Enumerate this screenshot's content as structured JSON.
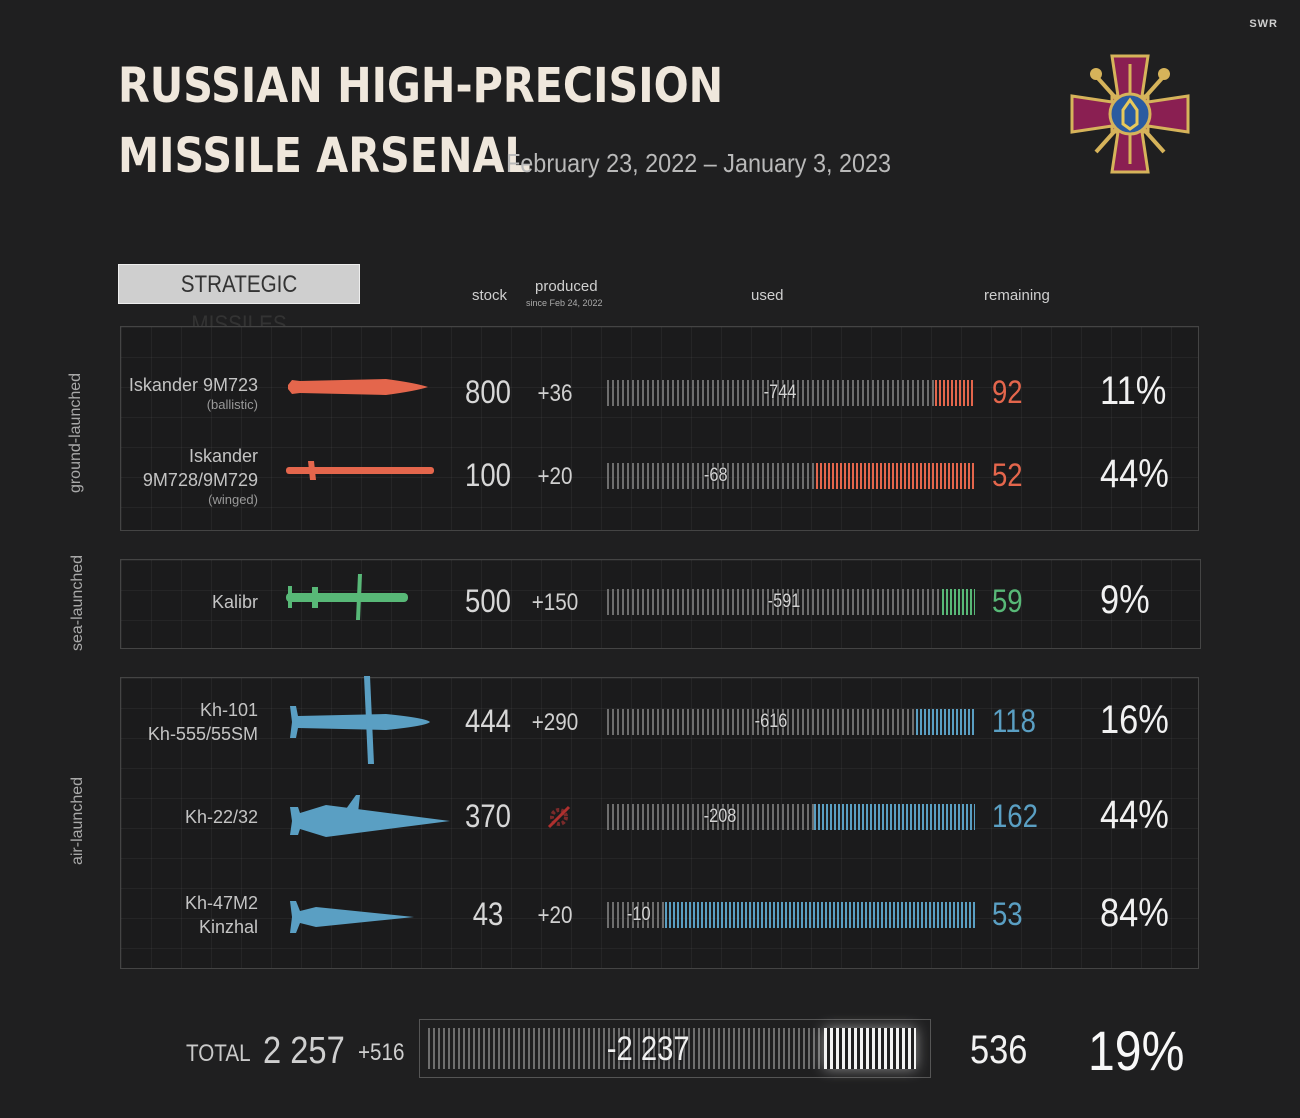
{
  "header": {
    "brand": "SWR",
    "title_line1": "RUSSIAN HIGH-PRECISION",
    "title_line2": "MISSILE ARSENAL",
    "date_range": "February 23, 2022 – January 3, 2023",
    "emblem_icon": "ukraine-armed-forces-emblem-icon"
  },
  "section": {
    "label": "STRATEGIC MISSILES"
  },
  "columns": {
    "stock": "stock",
    "produced": "produced",
    "produced_sub": "since Feb 24, 2022",
    "used": "used",
    "remaining": "remaining"
  },
  "colors": {
    "ground": "#e4664c",
    "sea": "#58b877",
    "air": "#5a9fc3"
  },
  "chart_data": {
    "type": "bar",
    "categories": [
      "Iskander 9M723",
      "Iskander 9M728/9M729",
      "Kalibr",
      "Kh-101 Kh-555/55SM",
      "Kh-22/32",
      "Kh-47M2 Kinzhal"
    ],
    "groups": [
      {
        "label": "ground-launched",
        "color_key": "ground",
        "missiles": [
          {
            "name": "Iskander 9M723",
            "sub": "(ballistic)",
            "stock": "800",
            "produced": "+36",
            "used": -744,
            "remaining": 92,
            "percent": "11%",
            "icon": "ballistic-missile-icon"
          },
          {
            "name": "Iskander",
            "name2": "9M728/9M729",
            "sub": "(winged)",
            "stock": "100",
            "produced": "+20",
            "used": -68,
            "remaining": 52,
            "percent": "44%",
            "icon": "cruise-missile-icon"
          }
        ]
      },
      {
        "label": "sea-launched",
        "color_key": "sea",
        "missiles": [
          {
            "name": "Kalibr",
            "stock": "500",
            "produced": "+150",
            "used": -591,
            "remaining": 59,
            "percent": "9%",
            "icon": "kalibr-missile-icon"
          }
        ]
      },
      {
        "label": "air-launched",
        "color_key": "air",
        "missiles": [
          {
            "name": "Kh-101",
            "name2": "Kh-555/55SM",
            "stock": "444",
            "produced": "+290",
            "used": -616,
            "remaining": 118,
            "percent": "16%",
            "icon": "kh101-missile-icon"
          },
          {
            "name": "Kh-22/32",
            "stock": "370",
            "produced": "",
            "produced_icon": "production-stopped-icon",
            "used": -208,
            "remaining": 162,
            "percent": "44%",
            "icon": "kh22-missile-icon"
          },
          {
            "name": "Kh-47M2",
            "name2": "Kinzhal",
            "stock": "43",
            "produced": "+20",
            "used": -10,
            "remaining": 53,
            "percent": "84%",
            "icon": "kinzhal-missile-icon"
          }
        ]
      }
    ]
  },
  "total": {
    "label": "TOTAL",
    "stock": "2 257",
    "produced": "+516",
    "used": "-2 237",
    "used_value": -2237,
    "remaining": "536",
    "remaining_value": 536,
    "percent": "19%"
  }
}
